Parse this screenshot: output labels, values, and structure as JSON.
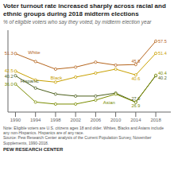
{
  "chart_data": {
    "type": "line",
    "title": "Voter turnout rate increased sharply across racial and\nethnic groups during 2018 midterm elections",
    "subtitle": "% of eligible voters who say they voted, by midterm election year",
    "note": "Note: Eligible voters are U.S. citizens ages 18 and older. Whites, Blacks and Asians include\nany non-Hispanics. Hispanics are of any race.\nSource: Pew Research Center analysis of the Current Population Survey, November\nSupplements, 1990-2018.",
    "footer": "PEW RESEARCH CENTER",
    "x": [
      1990,
      1994,
      1998,
      2002,
      2006,
      2010,
      2014,
      2018
    ],
    "series": [
      {
        "name": "White",
        "color": "#b5651d",
        "values": [
          51.3,
          47.3,
          43.5,
          44.5,
          47.0,
          45.5,
          45.8,
          57.5
        ],
        "value_labels": [
          "51.3",
          null,
          null,
          null,
          null,
          null,
          "45.8",
          "57.5"
        ]
      },
      {
        "name": "Black",
        "color": "#c8a000",
        "values": [
          42.5,
          38.0,
          37.0,
          39.5,
          41.5,
          43.5,
          40.6,
          51.4
        ],
        "value_labels": [
          "42.5",
          null,
          null,
          null,
          null,
          null,
          "40.6",
          "51.4"
        ]
      },
      {
        "name": "Hispanic",
        "color": "#4a5e1a",
        "values": [
          40.2,
          34.0,
          31.0,
          30.0,
          30.0,
          31.5,
          27.0,
          40.2
        ],
        "value_labels": [
          "40.2",
          null,
          null,
          null,
          null,
          null,
          "27.0",
          "40.2"
        ]
      },
      {
        "name": "Asian",
        "color": "#7a8c00",
        "values": [
          36.0,
          27.0,
          26.0,
          26.0,
          28.0,
          31.0,
          26.9,
          40.4
        ],
        "value_labels": [
          "36.0",
          null,
          null,
          null,
          null,
          null,
          "26.9",
          "40.4"
        ]
      }
    ],
    "annotations": [
      {
        "text": "White",
        "x": 1992.5,
        "y": 51.8,
        "color": "#b5651d"
      },
      {
        "text": "Black",
        "x": 1997.0,
        "y": 39.2,
        "color": "#c8a000"
      },
      {
        "text": "Hispanic",
        "x": 1991.0,
        "y": 37.5,
        "color": "#4a5e1a"
      },
      {
        "text": "Asian",
        "x": 2007.5,
        "y": 26.8,
        "color": "#7a8c00"
      }
    ],
    "xlim": [
      1988.5,
      2021
    ],
    "xticks": [
      1990,
      1994,
      1998,
      2002,
      2006,
      2010,
      2014,
      2018
    ],
    "ylim": [
      22,
      63
    ],
    "grid": false,
    "tick_labels": "x",
    "marker": "circle",
    "data_labels": true
  }
}
